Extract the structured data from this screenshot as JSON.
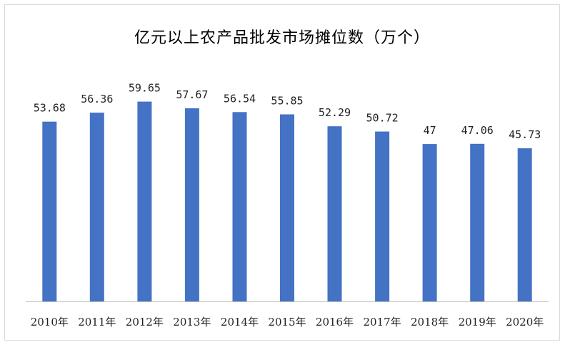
{
  "chart_data": {
    "type": "bar",
    "title": "亿元以上农产品批发市场摊位数（万个）",
    "categories": [
      "2010年",
      "2011年",
      "2012年",
      "2013年",
      "2014年",
      "2015年",
      "2016年",
      "2017年",
      "2018年",
      "2019年",
      "2020年"
    ],
    "values": [
      53.68,
      56.36,
      59.65,
      57.67,
      56.54,
      55.85,
      52.29,
      50.72,
      47,
      47.06,
      45.73
    ],
    "value_labels": [
      "53.68",
      "56.36",
      "59.65",
      "57.67",
      "56.54",
      "55.85",
      "52.29",
      "50.72",
      "47",
      "47.06",
      "45.73"
    ],
    "xlabel": "",
    "ylabel": "",
    "ylim": [
      0,
      70
    ],
    "grid": false,
    "bar_color": "#4472C4",
    "axis_color": "#bfbfbf"
  }
}
